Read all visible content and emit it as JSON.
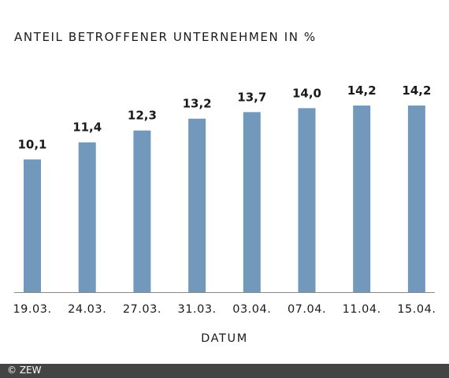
{
  "chart_data": {
    "type": "bar",
    "title": "ANTEIL BETROFFENER UNTERNEHMEN IN %",
    "xlabel": "DATUM",
    "ylabel": "",
    "categories": [
      "19.03.",
      "24.03.",
      "27.03.",
      "31.03.",
      "03.04.",
      "07.04.",
      "11.04.",
      "15.04."
    ],
    "values": [
      10.1,
      11.4,
      12.3,
      13.2,
      13.7,
      14.0,
      14.2,
      14.2
    ],
    "value_labels": [
      "10,1",
      "11,4",
      "12,3",
      "13,2",
      "13,7",
      "14,0",
      "14,2",
      "14,2"
    ],
    "ylim": [
      0,
      14.2
    ],
    "grid": false,
    "colors": {
      "bar": "#7299bb",
      "footer": "#444444"
    }
  },
  "footer": {
    "credit": "© ZEW"
  }
}
